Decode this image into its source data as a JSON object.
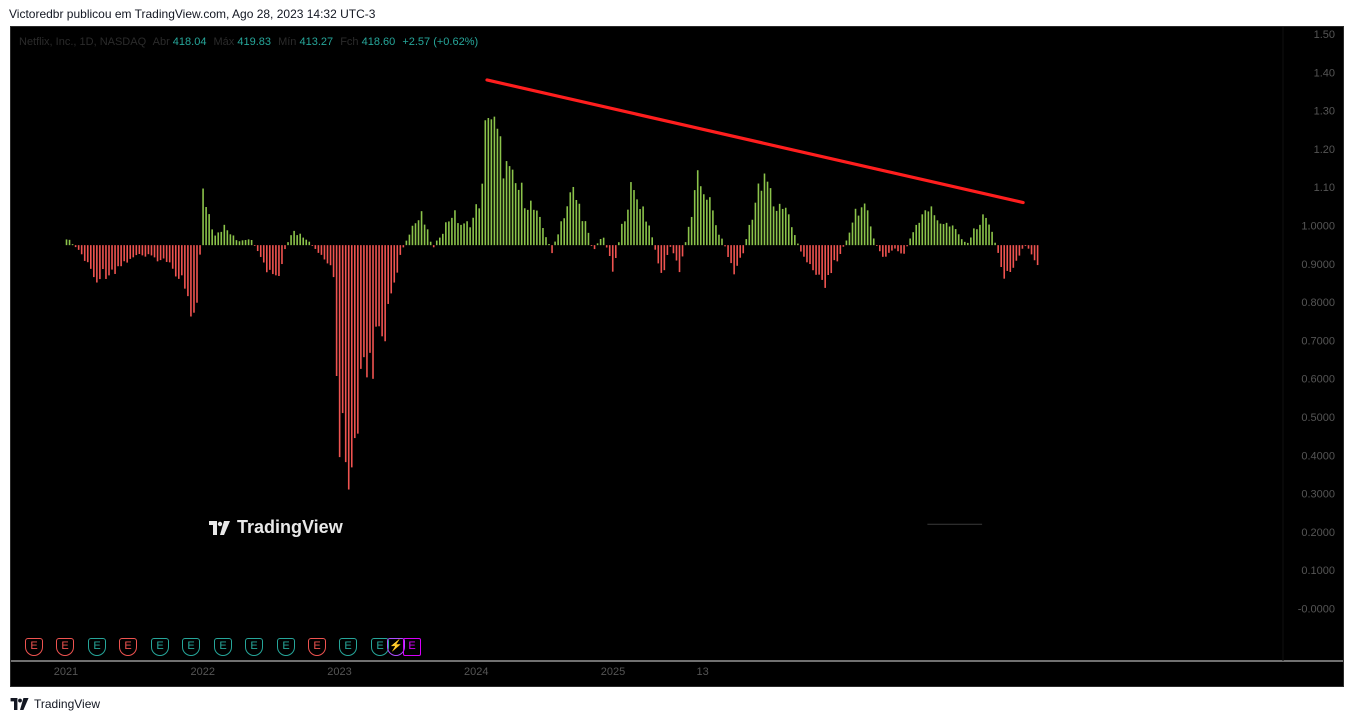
{
  "header": {
    "caption": "Victoredbr publicou em TradingView.com, Ago 28, 2023 14:32 UTC-3"
  },
  "legend": {
    "symbol": "Netflix, Inc., 1D, NASDAQ",
    "open_label": "Abr",
    "open_value": "418.04",
    "high_label": "Máx",
    "high_value": "419.83",
    "low_label": "Mín",
    "low_value": "413.27",
    "close_label": "Fch",
    "close_value": "418.60",
    "change": "+2.57 (+0.62%)"
  },
  "watermark": {
    "text": "TradingView"
  },
  "footer": {
    "brand": "TradingView"
  },
  "colors": {
    "background": "#000000",
    "positive": "#8bc34a",
    "negative": "#ef5350",
    "trendline": "#ff1e1e",
    "axis_text": "#555555"
  },
  "events": [
    {
      "label": "E",
      "kind": "red"
    },
    {
      "label": "E",
      "kind": "red"
    },
    {
      "label": "E",
      "kind": "green"
    },
    {
      "label": "E",
      "kind": "red"
    },
    {
      "label": "E",
      "kind": "green"
    },
    {
      "label": "E",
      "kind": "green"
    },
    {
      "label": "E",
      "kind": "green"
    },
    {
      "label": "E",
      "kind": "green"
    },
    {
      "label": "E",
      "kind": "green"
    },
    {
      "label": "E",
      "kind": "red"
    },
    {
      "label": "E",
      "kind": "green"
    },
    {
      "label": "E",
      "kind": "green"
    },
    {
      "label": "⚡",
      "kind": "split"
    },
    {
      "label": "E",
      "kind": "purple"
    }
  ],
  "chart_data": {
    "type": "bar",
    "baseline": 0.9487,
    "ylim": [
      -0.03,
      1.5
    ],
    "y_ticks": [
      "1.50",
      "1.40",
      "1.30",
      "1.20",
      "1.10",
      "1.0000",
      "0.9000",
      "0.8000",
      "0.7000",
      "0.6000",
      "0.5000",
      "0.4000",
      "0.3000",
      "0.2000",
      "0.1000",
      "-0.0000"
    ],
    "y_tick_values": [
      1.5,
      1.4,
      1.3,
      1.2,
      1.1,
      1.0,
      0.9,
      0.8,
      0.7,
      0.6,
      0.5,
      0.4,
      0.3,
      0.2,
      0.1,
      0.0
    ],
    "x_ticks": [
      "2021",
      "2022",
      "2023",
      "2024",
      "2025",
      "13"
    ],
    "x_tick_values": [
      2021.0,
      2022.0,
      2023.0,
      2024.0,
      2025.0,
      2025.7
    ],
    "x_range": [
      2020.6,
      2029.9
    ],
    "keyframes": [
      [
        2021.0,
        0.97
      ],
      [
        2021.1,
        0.93
      ],
      [
        2021.2,
        0.86
      ],
      [
        2021.35,
        0.88
      ],
      [
        2021.5,
        0.92
      ],
      [
        2021.7,
        0.91
      ],
      [
        2021.85,
        0.86
      ],
      [
        2021.95,
        0.73
      ],
      [
        2022.0,
        1.1
      ],
      [
        2022.08,
        0.98
      ],
      [
        2022.15,
        1.0
      ],
      [
        2022.25,
        0.96
      ],
      [
        2022.35,
        0.97
      ],
      [
        2022.45,
        0.88
      ],
      [
        2022.55,
        0.85
      ],
      [
        2022.6,
        0.94
      ],
      [
        2022.65,
        0.99
      ],
      [
        2022.75,
        0.97
      ],
      [
        2022.85,
        0.92
      ],
      [
        2022.95,
        0.88
      ],
      [
        2023.0,
        0.4
      ],
      [
        2023.06,
        0.32
      ],
      [
        2023.12,
        0.5
      ],
      [
        2023.18,
        0.55
      ],
      [
        2023.25,
        0.65
      ],
      [
        2023.32,
        0.7
      ],
      [
        2023.38,
        0.83
      ],
      [
        2023.45,
        0.93
      ],
      [
        2023.52,
        1.0
      ],
      [
        2023.6,
        1.03
      ],
      [
        2023.68,
        0.94
      ],
      [
        2023.75,
        0.99
      ],
      [
        2023.82,
        1.04
      ],
      [
        2023.9,
        1.0
      ],
      [
        2023.97,
        1.02
      ],
      [
        2024.04,
        1.1
      ],
      [
        2024.08,
        1.38
      ],
      [
        2024.12,
        1.28
      ],
      [
        2024.18,
        1.2
      ],
      [
        2024.25,
        1.13
      ],
      [
        2024.32,
        1.1
      ],
      [
        2024.4,
        1.06
      ],
      [
        2024.48,
        1.0
      ],
      [
        2024.55,
        0.93
      ],
      [
        2024.62,
        1.02
      ],
      [
        2024.7,
        1.1
      ],
      [
        2024.78,
        1.03
      ],
      [
        2024.85,
        0.93
      ],
      [
        2024.92,
        0.98
      ],
      [
        2025.0,
        0.88
      ],
      [
        2025.06,
        1.0
      ],
      [
        2025.12,
        1.1
      ],
      [
        2025.2,
        1.07
      ],
      [
        2025.28,
        0.98
      ],
      [
        2025.35,
        0.86
      ],
      [
        2025.42,
        0.95
      ],
      [
        2025.48,
        0.87
      ],
      [
        2025.55,
        1.0
      ],
      [
        2025.62,
        1.13
      ],
      [
        2025.68,
        1.1
      ],
      [
        2025.75,
        1.0
      ],
      [
        2025.82,
        0.94
      ],
      [
        2025.88,
        0.87
      ],
      [
        2025.95,
        0.93
      ],
      [
        2026.0,
        1.02
      ],
      [
        2026.06,
        1.1
      ],
      [
        2026.12,
        1.13
      ],
      [
        2026.18,
        1.05
      ],
      [
        2026.25,
        1.07
      ],
      [
        2026.32,
        0.98
      ],
      [
        2026.4,
        0.9
      ],
      [
        2026.48,
        0.88
      ],
      [
        2026.55,
        0.84
      ],
      [
        2026.62,
        0.9
      ],
      [
        2026.7,
        0.96
      ],
      [
        2026.78,
        1.06
      ],
      [
        2026.85,
        1.04
      ],
      [
        2026.92,
        0.95
      ],
      [
        2026.98,
        0.91
      ],
      [
        2027.05,
        0.94
      ],
      [
        2027.12,
        0.92
      ],
      [
        2027.2,
        1.0
      ],
      [
        2027.28,
        1.06
      ],
      [
        2027.35,
        1.03
      ],
      [
        2027.42,
        1.01
      ],
      [
        2027.5,
        0.99
      ],
      [
        2027.58,
        0.95
      ],
      [
        2027.65,
        1.0
      ],
      [
        2027.72,
        1.03
      ],
      [
        2027.78,
        0.97
      ],
      [
        2027.85,
        0.87
      ],
      [
        2027.92,
        0.88
      ],
      [
        2028.0,
        0.95
      ],
      [
        2028.05,
        0.93
      ],
      [
        2028.1,
        0.9
      ]
    ],
    "trendline": {
      "start": [
        2024.08,
        1.38
      ],
      "end": [
        2028.0,
        1.06
      ]
    },
    "zero_marker": {
      "x": [
        2027.3,
        2027.7
      ],
      "y": 0.22
    }
  }
}
